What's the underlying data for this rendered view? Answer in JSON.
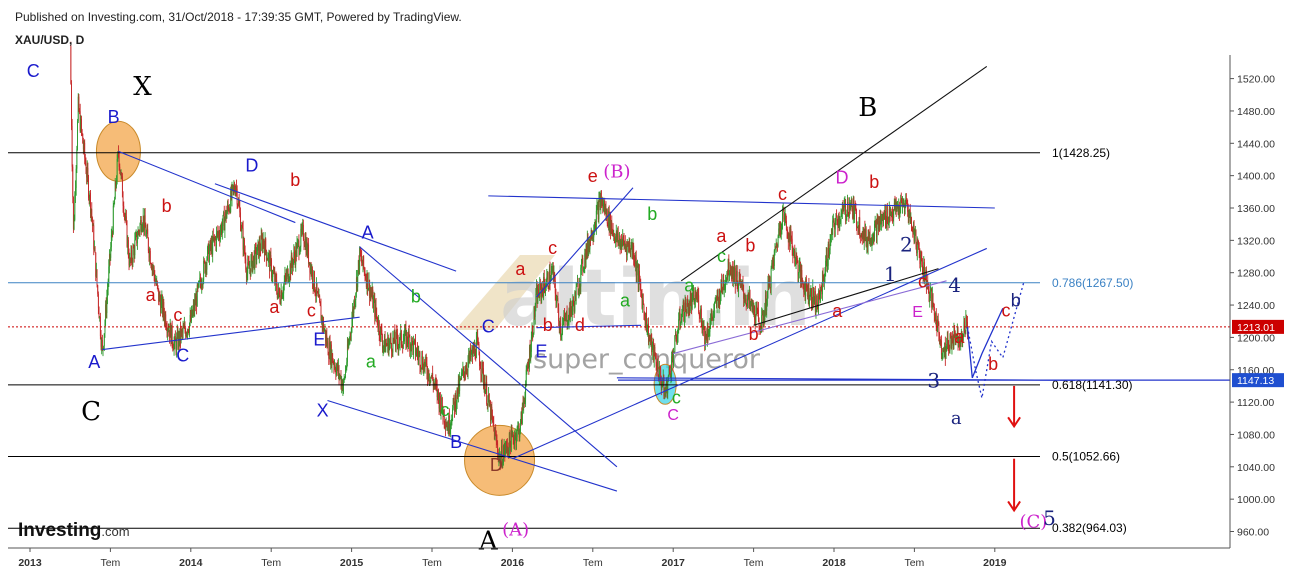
{
  "header": {
    "published": "Published on Investing.com, 31/Oct/2018 - 17:39:35 GMT, Powered by TradingView.",
    "symbol": "XAU/USD, D"
  },
  "logo": {
    "brand": "Investing",
    "suffix": ".com"
  },
  "watermark": {
    "site": "altin.in",
    "user": "super_conqueror"
  },
  "colors": {
    "up": "#2e9a2e",
    "down": "#c62828",
    "trend_blue": "#2233cc",
    "fib": "#000000",
    "fib_786": "#3b82c4",
    "price_line": "#cc0000",
    "label_blue": "#1a1acc",
    "label_red": "#cc1111",
    "label_green": "#22aa22",
    "label_magenta": "#cc22cc",
    "label_black": "#000000",
    "highlight_orange": "#f0a040",
    "highlight_cyan": "#40d8e8"
  },
  "chart_data": {
    "type": "candlestick",
    "symbol": "XAU/USD",
    "interval": "D",
    "x_ticks": [
      "2013",
      "Tem",
      "2014",
      "Tem",
      "2015",
      "Tem",
      "2016",
      "Tem",
      "2017",
      "Tem",
      "2018",
      "Tem",
      "2019"
    ],
    "x_tick_dates": [
      2013.0,
      2013.5,
      2014.0,
      2014.5,
      2015.0,
      2015.5,
      2016.0,
      2016.5,
      2017.0,
      2017.5,
      2018.0,
      2018.5,
      2019.0
    ],
    "y_ticks": [
      960,
      1000,
      1040,
      1080,
      1120,
      1160,
      1200,
      1240,
      1280,
      1320,
      1360,
      1400,
      1440,
      1480,
      1520
    ],
    "y_tick_labels": [
      "960.00",
      "1000.00",
      "1040.00",
      "1080.00",
      "1120.00",
      "1160.00",
      "1200.00",
      "1240.00",
      "1280.00",
      "1320.00",
      "1360.00",
      "1400.00",
      "1440.00",
      "1480.00",
      "1520.00"
    ],
    "ylim": [
      920,
      1545
    ],
    "xlim": [
      2012.9,
      2019.5
    ],
    "price_path": [
      [
        2013.25,
        1560
      ],
      [
        2013.27,
        1330
      ],
      [
        2013.3,
        1485
      ],
      [
        2013.38,
        1360
      ],
      [
        2013.45,
        1180
      ],
      [
        2013.55,
        1430
      ],
      [
        2013.62,
        1290
      ],
      [
        2013.7,
        1350
      ],
      [
        2013.8,
        1250
      ],
      [
        2013.9,
        1190
      ],
      [
        2014.0,
        1220
      ],
      [
        2014.1,
        1300
      ],
      [
        2014.2,
        1340
      ],
      [
        2014.28,
        1390
      ],
      [
        2014.35,
        1280
      ],
      [
        2014.45,
        1320
      ],
      [
        2014.55,
        1250
      ],
      [
        2014.7,
        1330
      ],
      [
        2014.85,
        1190
      ],
      [
        2014.95,
        1140
      ],
      [
        2015.05,
        1300
      ],
      [
        2015.1,
        1270
      ],
      [
        2015.2,
        1190
      ],
      [
        2015.35,
        1200
      ],
      [
        2015.5,
        1150
      ],
      [
        2015.6,
        1090
      ],
      [
        2015.7,
        1160
      ],
      [
        2015.78,
        1190
      ],
      [
        2015.92,
        1050
      ],
      [
        2016.05,
        1090
      ],
      [
        2016.15,
        1250
      ],
      [
        2016.25,
        1280
      ],
      [
        2016.3,
        1210
      ],
      [
        2016.38,
        1240
      ],
      [
        2016.45,
        1300
      ],
      [
        2016.55,
        1370
      ],
      [
        2016.65,
        1320
      ],
      [
        2016.75,
        1310
      ],
      [
        2016.85,
        1200
      ],
      [
        2016.95,
        1130
      ],
      [
        2017.05,
        1230
      ],
      [
        2017.15,
        1250
      ],
      [
        2017.2,
        1200
      ],
      [
        2017.35,
        1290
      ],
      [
        2017.45,
        1250
      ],
      [
        2017.55,
        1215
      ],
      [
        2017.68,
        1355
      ],
      [
        2017.8,
        1270
      ],
      [
        2017.9,
        1240
      ],
      [
        2018.0,
        1340
      ],
      [
        2018.1,
        1365
      ],
      [
        2018.2,
        1320
      ],
      [
        2018.32,
        1350
      ],
      [
        2018.45,
        1365
      ],
      [
        2018.55,
        1290
      ],
      [
        2018.62,
        1235
      ],
      [
        2018.68,
        1180
      ],
      [
        2018.75,
        1205
      ],
      [
        2018.78,
        1200
      ],
      [
        2018.82,
        1215
      ],
      [
        2018.83,
        1213
      ]
    ],
    "horizontal_levels": [
      {
        "label": "1(1428.25)",
        "value": 1428.25,
        "style": "fib"
      },
      {
        "label": "0.786(1267.50)",
        "value": 1267.5,
        "style": "fib_786"
      },
      {
        "label": "0.618(1141.30)",
        "value": 1141.3,
        "style": "fib"
      },
      {
        "label": "0.5(1052.66)",
        "value": 1052.66,
        "style": "fib"
      },
      {
        "label": "0.382(964.03)",
        "value": 964.03,
        "style": "fib"
      }
    ],
    "price_tags": [
      {
        "label": "1213.01",
        "value": 1213.01,
        "color": "#cc0000"
      },
      {
        "label": "1147.13",
        "value": 1147.13,
        "color": "#1f4fd0"
      }
    ],
    "trendlines": [
      {
        "color": "trend_blue",
        "from": [
          2013.55,
          1430
        ],
        "to": [
          2014.65,
          1342
        ]
      },
      {
        "color": "trend_blue",
        "from": [
          2014.15,
          1390
        ],
        "to": [
          2015.65,
          1282
        ]
      },
      {
        "color": "trend_blue",
        "from": [
          2015.05,
          1312
        ],
        "to": [
          2016.65,
          1040
        ]
      },
      {
        "color": "trend_blue",
        "from": [
          2013.45,
          1185
        ],
        "to": [
          2015.05,
          1225
        ]
      },
      {
        "color": "trend_blue",
        "from": [
          2014.85,
          1122
        ],
        "to": [
          2016.65,
          1010
        ]
      },
      {
        "color": "trend_blue",
        "from": [
          2016.0,
          1050
        ],
        "to": [
          2018.95,
          1310
        ]
      },
      {
        "color": "trend_blue",
        "from": [
          2016.15,
          1250
        ],
        "to": [
          2016.75,
          1385
        ]
      },
      {
        "color": "trend_blue",
        "from": [
          2015.85,
          1375
        ],
        "to": [
          2019.0,
          1360
        ]
      },
      {
        "color": "trend_blue",
        "from": [
          2016.15,
          1212
        ],
        "to": [
          2016.8,
          1215
        ]
      },
      {
        "color": "trend_blue",
        "from": [
          2016.65,
          1150
        ],
        "to": [
          2019.5,
          1147
        ]
      },
      {
        "color": "black",
        "from": [
          2017.05,
          1270
        ],
        "to": [
          2018.95,
          1535
        ]
      },
      {
        "color": "black",
        "from": [
          2017.5,
          1215
        ],
        "to": [
          2018.65,
          1285
        ]
      },
      {
        "color": "purple",
        "from": [
          2017.0,
          1180
        ],
        "to": [
          2018.7,
          1270
        ]
      }
    ],
    "projections": [
      {
        "color": "trend_blue",
        "style": "solid",
        "points": [
          [
            2018.83,
            1213
          ],
          [
            2018.86,
            1150
          ],
          [
            2018.92,
            1180
          ],
          [
            2019.05,
            1236
          ]
        ]
      },
      {
        "color": "trend_blue",
        "style": "dotted",
        "points": [
          [
            2018.83,
            1213
          ],
          [
            2018.88,
            1160
          ],
          [
            2018.92,
            1125
          ],
          [
            2018.98,
            1195
          ],
          [
            2019.05,
            1175
          ],
          [
            2019.18,
            1268
          ]
        ]
      }
    ],
    "arrows": [
      {
        "from": [
          2019.12,
          1140
        ],
        "to": [
          2019.12,
          1090
        ]
      },
      {
        "from": [
          2019.12,
          1050
        ],
        "to": [
          2019.12,
          986
        ]
      }
    ],
    "highlights": [
      {
        "shape": "ellipse",
        "color": "highlight_orange",
        "at": [
          2013.55,
          1430
        ],
        "rx": 22,
        "ry": 30
      },
      {
        "shape": "ellipse",
        "color": "highlight_orange",
        "at": [
          2015.92,
          1048
        ],
        "rx": 35,
        "ry": 35
      },
      {
        "shape": "ellipse",
        "color": "highlight_cyan",
        "at": [
          2016.95,
          1142
        ],
        "rx": 11,
        "ry": 20
      }
    ],
    "wave_labels": [
      {
        "text": "C",
        "at": [
          2013.02,
          1522
        ],
        "color": "label_blue",
        "size": 18,
        "font": "sans"
      },
      {
        "text": "X",
        "at": [
          2013.7,
          1500
        ],
        "color": "label_black",
        "size": 26,
        "font": "serif"
      },
      {
        "text": "B",
        "at": [
          2013.52,
          1465
        ],
        "color": "label_blue",
        "size": 18,
        "font": "sans"
      },
      {
        "text": "D",
        "at": [
          2014.38,
          1405
        ],
        "color": "label_blue",
        "size": 18,
        "font": "sans"
      },
      {
        "text": "b",
        "at": [
          2014.65,
          1387
        ],
        "color": "label_red",
        "size": 18,
        "font": "sans"
      },
      {
        "text": "b",
        "at": [
          2013.85,
          1355
        ],
        "color": "label_red",
        "size": 18,
        "font": "sans"
      },
      {
        "text": "a",
        "at": [
          2013.75,
          1245
        ],
        "color": "label_red",
        "size": 18,
        "font": "sans"
      },
      {
        "text": "c",
        "at": [
          2013.92,
          1220
        ],
        "color": "label_red",
        "size": 18,
        "font": "sans"
      },
      {
        "text": "a",
        "at": [
          2014.52,
          1230
        ],
        "color": "label_red",
        "size": 18,
        "font": "sans"
      },
      {
        "text": "c",
        "at": [
          2014.75,
          1226
        ],
        "color": "label_red",
        "size": 18,
        "font": "sans"
      },
      {
        "text": "A",
        "at": [
          2013.4,
          1162
        ],
        "color": "label_blue",
        "size": 18,
        "font": "sans"
      },
      {
        "text": "C",
        "at": [
          2013.95,
          1170
        ],
        "color": "label_blue",
        "size": 18,
        "font": "sans"
      },
      {
        "text": "E",
        "at": [
          2014.8,
          1190
        ],
        "color": "label_blue",
        "size": 18,
        "font": "sans"
      },
      {
        "text": "C",
        "at": [
          2013.38,
          1098
        ],
        "color": "label_black",
        "size": 26,
        "font": "serif"
      },
      {
        "text": "A",
        "at": [
          2015.1,
          1322
        ],
        "color": "label_blue",
        "size": 18,
        "font": "sans"
      },
      {
        "text": "b",
        "at": [
          2015.4,
          1243
        ],
        "color": "label_green",
        "size": 18,
        "font": "sans"
      },
      {
        "text": "a",
        "at": [
          2015.12,
          1163
        ],
        "color": "label_green",
        "size": 18,
        "font": "sans"
      },
      {
        "text": "X",
        "at": [
          2014.82,
          1102
        ],
        "color": "label_blue",
        "size": 18,
        "font": "sans"
      },
      {
        "text": "c",
        "at": [
          2015.58,
          1103
        ],
        "color": "label_green",
        "size": 18,
        "font": "sans"
      },
      {
        "text": "B",
        "at": [
          2015.65,
          1063
        ],
        "color": "label_blue",
        "size": 18,
        "font": "sans"
      },
      {
        "text": "C",
        "at": [
          2015.85,
          1206
        ],
        "color": "label_blue",
        "size": 18,
        "font": "sans"
      },
      {
        "text": "D",
        "at": [
          2015.9,
          1035
        ],
        "color": "label_brown",
        "size": 18,
        "font": "sans"
      },
      {
        "text": "(A)",
        "at": [
          2016.02,
          955
        ],
        "color": "label_magenta",
        "size": 18,
        "font": "serif"
      },
      {
        "text": "A",
        "at": [
          2015.85,
          938
        ],
        "color": "label_black",
        "size": 26,
        "font": "serif"
      },
      {
        "text": "E",
        "at": [
          2016.18,
          1175
        ],
        "color": "label_blue",
        "size": 18,
        "font": "sans"
      },
      {
        "text": "a",
        "at": [
          2016.05,
          1277
        ],
        "color": "label_red",
        "size": 18,
        "font": "sans"
      },
      {
        "text": "c",
        "at": [
          2016.25,
          1303
        ],
        "color": "label_red",
        "size": 18,
        "font": "sans"
      },
      {
        "text": "b",
        "at": [
          2016.22,
          1208
        ],
        "color": "label_red",
        "size": 18,
        "font": "sans"
      },
      {
        "text": "d",
        "at": [
          2016.42,
          1208
        ],
        "color": "label_red",
        "size": 18,
        "font": "sans"
      },
      {
        "text": "e",
        "at": [
          2016.5,
          1392
        ],
        "color": "label_red",
        "size": 18,
        "font": "sans"
      },
      {
        "text": "(B)",
        "at": [
          2016.65,
          1398
        ],
        "color": "label_magenta",
        "size": 18,
        "font": "serif"
      },
      {
        "text": "b",
        "at": [
          2016.87,
          1345
        ],
        "color": "label_green",
        "size": 18,
        "font": "sans"
      },
      {
        "text": "a",
        "at": [
          2016.7,
          1238
        ],
        "color": "label_green",
        "size": 18,
        "font": "sans"
      },
      {
        "text": "c",
        "at": [
          2017.02,
          1118
        ],
        "color": "label_green",
        "size": 18,
        "font": "sans"
      },
      {
        "text": "C",
        "at": [
          2017.0,
          1098
        ],
        "color": "label_magenta",
        "size": 16,
        "font": "sans"
      },
      {
        "text": "a",
        "at": [
          2017.1,
          1257
        ],
        "color": "label_green",
        "size": 18,
        "font": "sans"
      },
      {
        "text": "c",
        "at": [
          2017.3,
          1293
        ],
        "color": "label_green",
        "size": 18,
        "font": "sans"
      },
      {
        "text": "a",
        "at": [
          2017.3,
          1318
        ],
        "color": "label_red",
        "size": 18,
        "font": "sans"
      },
      {
        "text": "b",
        "at": [
          2017.48,
          1306
        ],
        "color": "label_red",
        "size": 18,
        "font": "sans"
      },
      {
        "text": "b",
        "at": [
          2017.5,
          1197
        ],
        "color": "label_red",
        "size": 18,
        "font": "sans"
      },
      {
        "text": "c",
        "at": [
          2017.68,
          1370
        ],
        "color": "label_red",
        "size": 18,
        "font": "sans"
      },
      {
        "text": "B",
        "at": [
          2018.21,
          1474
        ],
        "color": "label_black",
        "size": 26,
        "font": "serif"
      },
      {
        "text": "D",
        "at": [
          2018.05,
          1390
        ],
        "color": "label_magenta",
        "size": 18,
        "font": "sans"
      },
      {
        "text": "b",
        "at": [
          2018.25,
          1385
        ],
        "color": "label_red",
        "size": 18,
        "font": "sans"
      },
      {
        "text": "a",
        "at": [
          2018.02,
          1225
        ],
        "color": "label_red",
        "size": 18,
        "font": "sans"
      },
      {
        "text": "2",
        "at": [
          2018.45,
          1306
        ],
        "color": "label_navy",
        "size": 20,
        "font": "serif"
      },
      {
        "text": "1",
        "at": [
          2018.35,
          1270
        ],
        "color": "label_navy",
        "size": 20,
        "font": "serif"
      },
      {
        "text": "c",
        "at": [
          2018.55,
          1262
        ],
        "color": "label_red",
        "size": 18,
        "font": "sans"
      },
      {
        "text": "E",
        "at": [
          2018.52,
          1225
        ],
        "color": "label_magenta",
        "size": 16,
        "font": "sans"
      },
      {
        "text": "4",
        "at": [
          2018.75,
          1256
        ],
        "color": "label_navy",
        "size": 20,
        "font": "serif"
      },
      {
        "text": "a",
        "at": [
          2018.78,
          1193
        ],
        "color": "label_red",
        "size": 18,
        "font": "sans"
      },
      {
        "text": "b",
        "at": [
          2018.99,
          1160
        ],
        "color": "label_red",
        "size": 18,
        "font": "sans"
      },
      {
        "text": "c",
        "at": [
          2019.07,
          1226
        ],
        "color": "label_red",
        "size": 18,
        "font": "sans"
      },
      {
        "text": "b",
        "at": [
          2019.13,
          1238
        ],
        "color": "label_navy",
        "size": 18,
        "font": "sans"
      },
      {
        "text": "3",
        "at": [
          2018.62,
          1138
        ],
        "color": "label_navy",
        "size": 20,
        "font": "serif"
      },
      {
        "text": "a",
        "at": [
          2018.76,
          1093
        ],
        "color": "label_navy",
        "size": 18,
        "font": "serif"
      },
      {
        "text": "(C)",
        "at": [
          2019.24,
          965
        ],
        "color": "label_magenta",
        "size": 18,
        "font": "serif"
      },
      {
        "text": "5",
        "at": [
          2019.34,
          968
        ],
        "color": "label_navy",
        "size": 20,
        "font": "serif"
      }
    ]
  }
}
